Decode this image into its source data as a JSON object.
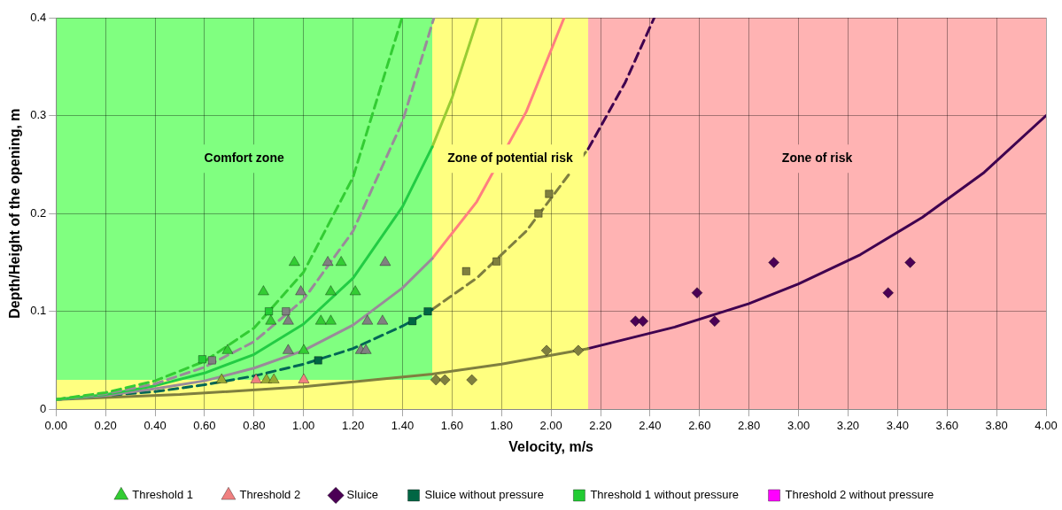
{
  "chart_data": {
    "type": "scatter",
    "xlabel": "Velocity, m/s",
    "ylabel": "Depth/Height of the opening, m",
    "xlim": [
      0,
      4
    ],
    "xticks": [
      {
        "value": 0,
        "label": "0.00"
      },
      {
        "value": 0.2,
        "label": "0.20"
      },
      {
        "value": 0.4,
        "label": "0.40"
      },
      {
        "value": 0.6,
        "label": "0.60"
      },
      {
        "value": 0.8,
        "label": "0.80"
      },
      {
        "value": 1,
        "label": "1.00"
      },
      {
        "value": 1.2,
        "label": "1.20"
      },
      {
        "value": 1.4,
        "label": "1.40"
      },
      {
        "value": 1.6,
        "label": "1.60"
      },
      {
        "value": 1.8,
        "label": "1.80"
      },
      {
        "value": 2,
        "label": "2.00"
      },
      {
        "value": 2.2,
        "label": "2.20"
      },
      {
        "value": 2.4,
        "label": "2.40"
      },
      {
        "value": 2.6,
        "label": "2.60"
      },
      {
        "value": 2.8,
        "label": "2.80"
      },
      {
        "value": 3,
        "label": "3.00"
      },
      {
        "value": 3.2,
        "label": "3.20"
      },
      {
        "value": 3.4,
        "label": "3.40"
      },
      {
        "value": 3.6,
        "label": "3.60"
      },
      {
        "value": 3.8,
        "label": "3.80"
      },
      {
        "value": 4,
        "label": "4.00"
      }
    ],
    "ylim": [
      0,
      0.4
    ],
    "yticks": [
      0,
      0.1,
      0.2,
      0.3,
      0.4
    ],
    "grid": true,
    "legend": "bottom",
    "bands": [
      {
        "axis": "x",
        "from": 0,
        "to": 1.52,
        "label": "Comfort zone",
        "color": "#80ff80"
      },
      {
        "axis": "y",
        "from": 0,
        "to": 0.03,
        "color": "#ffff80"
      },
      {
        "axis": "x",
        "from": 1.52,
        "to": 2.15,
        "label": "Zone of potential risk",
        "color": "#ffff80"
      },
      {
        "axis": "x",
        "from": 2.15,
        "to": 4,
        "label": "Zone of risk",
        "color": "#ffb3b3"
      }
    ],
    "series": [
      {
        "type": "line",
        "color": "#33cc33",
        "line_style": "dashed",
        "marker": "none",
        "x": [
          0,
          0.2,
          0.4,
          0.6,
          0.8,
          1.0,
          1.2,
          1.398
        ],
        "values": [
          0.01,
          0.017,
          0.029,
          0.049,
          0.083,
          0.14,
          0.237,
          0.4
        ]
      },
      {
        "type": "line",
        "color": "#9a8a9a",
        "line_style": "dashed",
        "marker": "none",
        "x": [
          0,
          0.2,
          0.4,
          0.6,
          0.8,
          1.0,
          1.2,
          1.4,
          1.527
        ],
        "values": [
          0.01,
          0.016,
          0.026,
          0.043,
          0.069,
          0.112,
          0.182,
          0.294,
          0.4
        ]
      },
      {
        "type": "line",
        "color": "#22cc44",
        "line_style": "solid",
        "marker": "none",
        "x": [
          0,
          0.2,
          0.4,
          0.6,
          0.8,
          1.0,
          1.2,
          1.4,
          1.52
        ],
        "values": [
          0.01,
          0.015,
          0.024,
          0.037,
          0.056,
          0.087,
          0.134,
          0.207,
          0.268
        ]
      },
      {
        "type": "line",
        "color": "#99cc33",
        "line_style": "solid",
        "marker": "none",
        "x": [
          1.52,
          1.6,
          1.705
        ],
        "values": [
          0.268,
          0.318,
          0.4
        ]
      },
      {
        "type": "line",
        "color": "#9a8a9a",
        "line_style": "solid",
        "marker": "none",
        "x": [
          0,
          0.2,
          0.4,
          0.6,
          0.8,
          1.0,
          1.2,
          1.4,
          1.52
        ],
        "values": [
          0.01,
          0.014,
          0.021,
          0.029,
          0.042,
          0.06,
          0.086,
          0.124,
          0.154
        ]
      },
      {
        "type": "line",
        "color": "#ff7f7f",
        "line_style": "solid",
        "marker": "none",
        "x": [
          1.52,
          1.7,
          1.9,
          2.053
        ],
        "values": [
          0.154,
          0.212,
          0.304,
          0.4
        ]
      },
      {
        "type": "line",
        "color": "#006655",
        "line_style": "dashed",
        "marker": "none",
        "x": [
          0,
          0.2,
          0.4,
          0.6,
          0.8,
          1.0,
          1.2,
          1.4,
          1.52
        ],
        "values": [
          0.01,
          0.014,
          0.018,
          0.025,
          0.034,
          0.046,
          0.062,
          0.085,
          0.102
        ]
      },
      {
        "type": "line",
        "color": "#7f7f3f",
        "line_style": "dashed",
        "marker": "none",
        "x": [
          1.52,
          1.7,
          1.9,
          2.15
        ],
        "values": [
          0.102,
          0.134,
          0.182,
          0.266
        ]
      },
      {
        "type": "line",
        "color": "#3f004f",
        "line_style": "dashed",
        "marker": "none",
        "x": [
          2.15,
          2.3,
          2.417
        ],
        "values": [
          0.266,
          0.334,
          0.4
        ]
      },
      {
        "type": "line",
        "color": "#7f7f3f",
        "line_style": "solid",
        "marker": "none",
        "x": [
          0,
          0.5,
          1.0,
          1.52,
          1.8,
          2.15
        ],
        "values": [
          0.01,
          0.015,
          0.023,
          0.036,
          0.046,
          0.062
        ]
      },
      {
        "type": "line",
        "color": "#3f004f",
        "line_style": "solid",
        "marker": "none",
        "x": [
          2.15,
          2.5,
          2.8,
          3.0,
          3.25,
          3.5,
          3.75,
          4.0
        ],
        "values": [
          0.062,
          0.084,
          0.108,
          0.128,
          0.158,
          0.196,
          0.242,
          0.3
        ]
      },
      {
        "name": "Threshold 1",
        "type": "scatter",
        "color": "#33cc33",
        "marker": "triangle",
        "x": [
          0.963,
          1.152,
          0.838,
          1.11,
          1.209,
          1.07,
          1.11,
          0.868,
          1.001,
          0.693
        ],
        "values": [
          0.15,
          0.15,
          0.12,
          0.12,
          0.12,
          0.09,
          0.09,
          0.09,
          0.06,
          0.06
        ]
      },
      {
        "type": "scatter",
        "color": "#808080",
        "marker": "triangle",
        "x": [
          1.098,
          1.33,
          0.989,
          1.258,
          1.319,
          0.938,
          0.938,
          1.231,
          1.252
        ],
        "values": [
          0.15,
          0.15,
          0.12,
          0.09,
          0.09,
          0.09,
          0.06,
          0.06,
          0.06
        ]
      },
      {
        "type": "scatter",
        "color": "#99aa33",
        "marker": "triangle",
        "x": [
          0.669,
          0.85,
          0.88
        ],
        "values": [
          0.03,
          0.03,
          0.03
        ]
      },
      {
        "name": "Threshold 2",
        "type": "scatter",
        "color": "#f08080",
        "marker": "triangle",
        "x": [
          0.808,
          1.001
        ],
        "values": [
          0.03,
          0.03
        ]
      },
      {
        "name": "Sluice",
        "type": "scatter",
        "color": "#4b0055",
        "marker": "diamond",
        "x": [
          2.341,
          2.371,
          2.661,
          2.59,
          2.9,
          3.362,
          3.451
        ],
        "values": [
          0.09,
          0.09,
          0.09,
          0.119,
          0.15,
          0.119,
          0.15
        ]
      },
      {
        "type": "scatter",
        "color": "#7f7f3f",
        "marker": "diamond",
        "x": [
          1.982,
          2.11,
          1.535,
          1.571,
          1.68
        ],
        "values": [
          0.06,
          0.06,
          0.03,
          0.03,
          0.03
        ]
      },
      {
        "name": "Sluice without pressure",
        "type": "scatter",
        "color": "#006644",
        "marker": "square",
        "x": [
          1.059,
          1.44,
          1.502
        ],
        "values": [
          0.05,
          0.09,
          0.1
        ]
      },
      {
        "name": "Threshold 1 without pressure",
        "type": "scatter",
        "color": "#22cc33",
        "marker": "square",
        "x": [
          0.86,
          0.591
        ],
        "values": [
          0.1,
          0.051
        ]
      },
      {
        "name": "Threshold 2 without pressure",
        "type": "scatter",
        "color": "#ff00ff",
        "marker": "square"
      },
      {
        "type": "scatter",
        "color": "#808080",
        "marker": "square",
        "x": [
          0.929,
          0.63
        ],
        "values": [
          0.1,
          0.05
        ]
      },
      {
        "type": "scatter",
        "color": "#7f7f3f",
        "marker": "square",
        "x": [
          1.992,
          1.949,
          1.78,
          1.657
        ],
        "values": [
          0.22,
          0.2,
          0.151,
          0.141
        ]
      }
    ]
  }
}
